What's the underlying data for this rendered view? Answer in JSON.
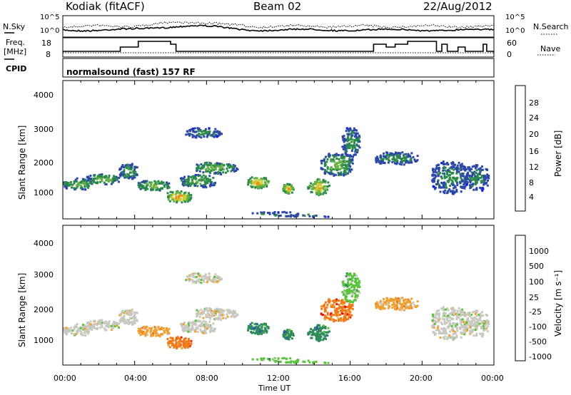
{
  "header": {
    "site": "Kodiak (fitACF)",
    "beam": "Beam 02",
    "date": "22/Aug/2012"
  },
  "noise_panel": {
    "left_label": "N.Sky",
    "right_label": "N.Search",
    "left_ticks": [
      "10^5",
      "10^0"
    ],
    "right_ticks": [
      "10^5",
      "10^0"
    ]
  },
  "freq_panel": {
    "left_label_1": "Freq.",
    "left_label_2": "[MHz]",
    "right_label": "Nave",
    "left_ticks": [
      "18",
      "8"
    ],
    "right_ticks": [
      "60",
      "0"
    ]
  },
  "cpid_panel": {
    "label": "CPID",
    "text": "normalsound (fast) 157 RF"
  },
  "chart_data": [
    {
      "type": "heatmap",
      "name": "power",
      "ylabel": "Slant Range [km]",
      "yticks": [
        "4000",
        "3000",
        "2000",
        "1000"
      ],
      "ylim": [
        180,
        4500
      ],
      "xlim": [
        0,
        24
      ],
      "colorbar_label": "Power [dB]",
      "colorbar_ticks": [
        "28",
        "24",
        "20",
        "16",
        "12",
        "8",
        "4"
      ],
      "colorbar_colors": [
        "#0a17e8",
        "#2c47a8",
        "#2b8a4a",
        "#66b048",
        "#cfcd2c",
        "#f08a1a",
        "#e81212"
      ]
    },
    {
      "type": "heatmap",
      "name": "velocity",
      "ylabel": "Slant Range [km]",
      "yticks": [
        "4000",
        "3000",
        "2000",
        "1000"
      ],
      "ylim": [
        180,
        4500
      ],
      "xlim": [
        0,
        24
      ],
      "xlabel": "Time UT",
      "xticks": [
        "00:00",
        "04:00",
        "08:00",
        "12:00",
        "16:00",
        "20:00",
        "00:00"
      ],
      "colorbar_label": "Velocity [m s⁻¹]",
      "colorbar_ticks": [
        "1000",
        "500",
        "100",
        "25",
        "-25",
        "-100",
        "-500",
        "-1000"
      ],
      "colorbar_colors": [
        "#1e3fc8",
        "#3158a8",
        "#2e8a5a",
        "#58c43a",
        "#c8c8c0",
        "#f0a030",
        "#f07818",
        "#e81212"
      ]
    }
  ]
}
